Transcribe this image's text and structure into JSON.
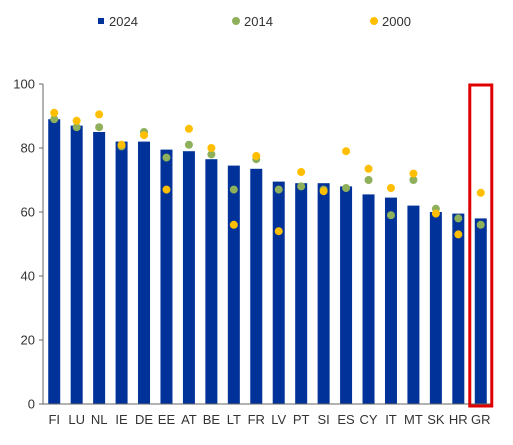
{
  "chart_data": {
    "type": "bar",
    "categories": [
      "FI",
      "LU",
      "NL",
      "IE",
      "DE",
      "EE",
      "AT",
      "BE",
      "LT",
      "FR",
      "LV",
      "PT",
      "SI",
      "ES",
      "CY",
      "IT",
      "MT",
      "SK",
      "HR",
      "GR"
    ],
    "series": [
      {
        "name": "2024",
        "kind": "bar",
        "color": "#003299",
        "values": [
          89,
          87,
          85,
          82,
          82,
          79.5,
          79,
          76.5,
          74.5,
          73.5,
          69.5,
          69,
          69,
          68,
          65.5,
          64.5,
          62,
          60,
          59.5,
          58
        ]
      },
      {
        "name": "2014",
        "kind": "dot",
        "color": "#8fb05a",
        "values": [
          89,
          86.5,
          86.5,
          80.5,
          85,
          77,
          81,
          78,
          67,
          76.5,
          67,
          68,
          67,
          67.5,
          70,
          59,
          70,
          61,
          58,
          56
        ]
      },
      {
        "name": "2000",
        "kind": "dot",
        "color": "#ffbf00",
        "values": [
          91,
          88.5,
          90.5,
          81,
          84,
          67,
          86,
          80,
          56,
          77.5,
          54,
          72.5,
          66.5,
          79,
          73.5,
          67.5,
          72,
          59.5,
          53,
          66
        ]
      }
    ],
    "ylim": [
      0,
      100
    ],
    "yticks": [
      0,
      20,
      40,
      60,
      80,
      100
    ],
    "title": "",
    "xlabel": "",
    "ylabel": "",
    "legend_position": "top",
    "grid": false,
    "highlight": {
      "category": "GR",
      "color": "#e00000"
    }
  }
}
